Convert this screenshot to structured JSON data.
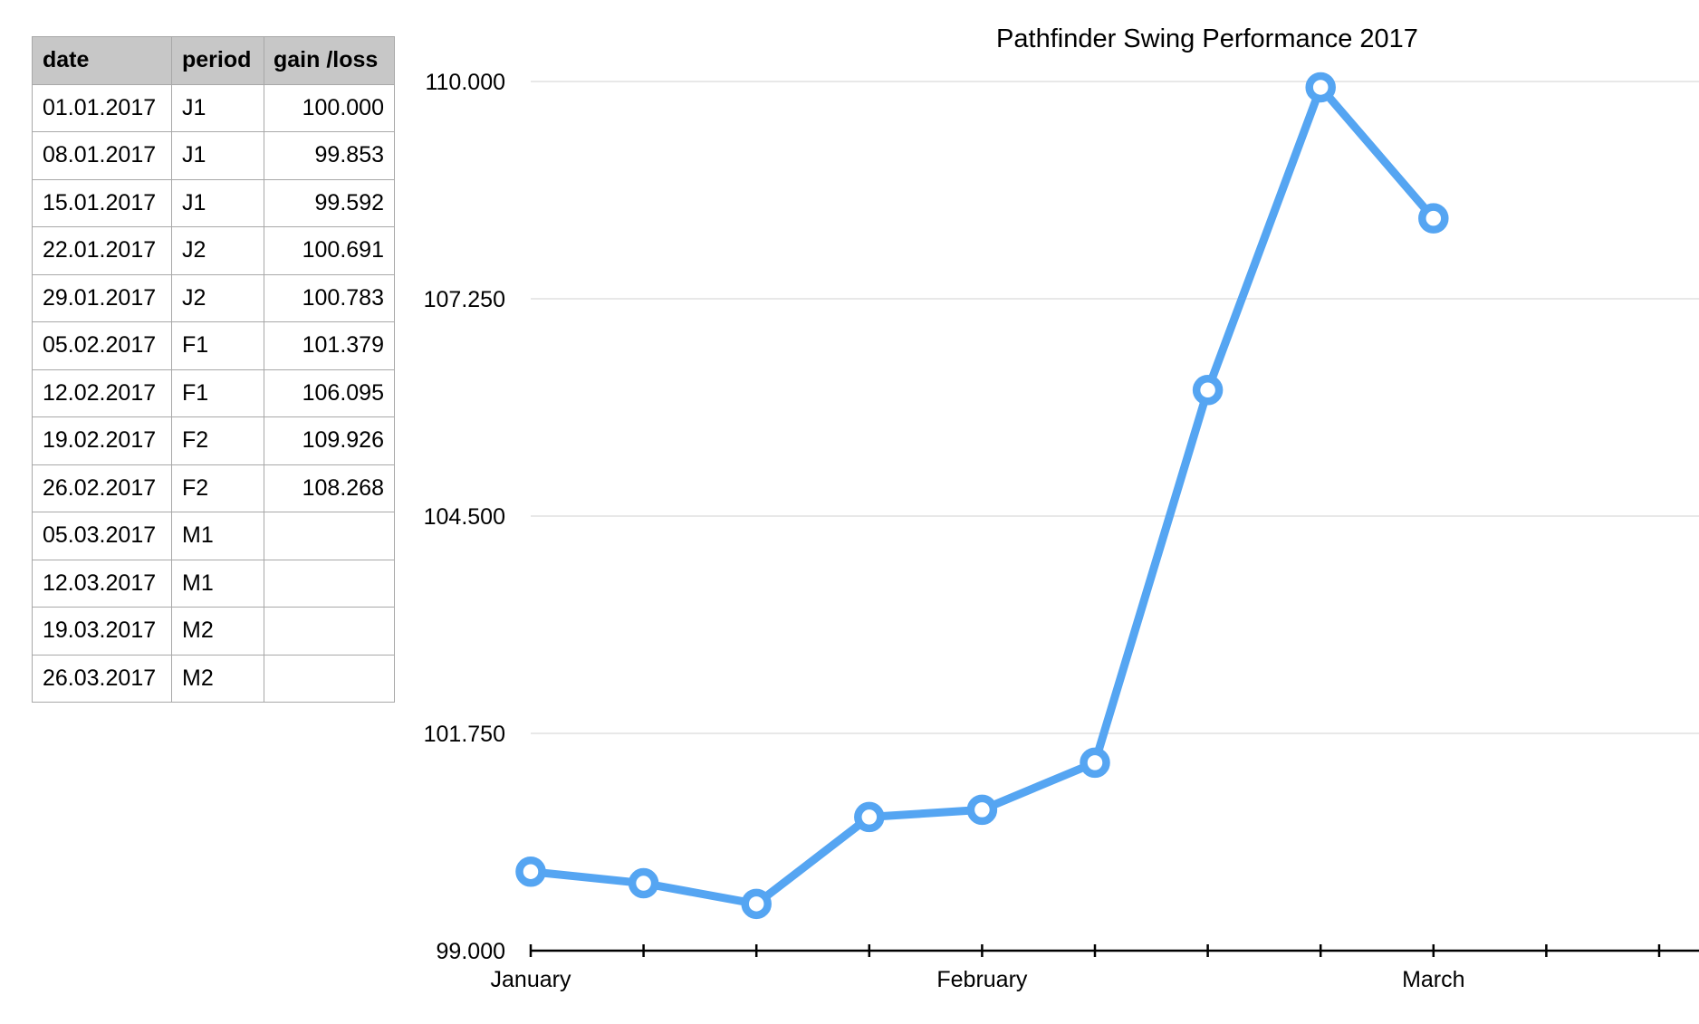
{
  "table": {
    "headers": [
      "date",
      "period",
      "gain /loss"
    ],
    "rows": [
      [
        "01.01.2017",
        "J1",
        "100.000"
      ],
      [
        "08.01.2017",
        "J1",
        "99.853"
      ],
      [
        "15.01.2017",
        "J1",
        "99.592"
      ],
      [
        "22.01.2017",
        "J2",
        "100.691"
      ],
      [
        "29.01.2017",
        "J2",
        "100.783"
      ],
      [
        "05.02.2017",
        "F1",
        "101.379"
      ],
      [
        "12.02.2017",
        "F1",
        "106.095"
      ],
      [
        "19.02.2017",
        "F2",
        "109.926"
      ],
      [
        "26.02.2017",
        "F2",
        "108.268"
      ],
      [
        "05.03.2017",
        "M1",
        ""
      ],
      [
        "12.03.2017",
        "M1",
        ""
      ],
      [
        "19.03.2017",
        "M2",
        ""
      ],
      [
        "26.03.2017",
        "M2",
        ""
      ]
    ]
  },
  "chart_data": {
    "type": "line",
    "title": "Pathfinder Swing Performance 2017",
    "xlabel": "",
    "ylabel": "",
    "x": [
      "01.01.2017",
      "08.01.2017",
      "15.01.2017",
      "22.01.2017",
      "29.01.2017",
      "05.02.2017",
      "12.02.2017",
      "19.02.2017",
      "26.02.2017",
      "05.03.2017",
      "12.03.2017",
      "19.03.2017",
      "26.03.2017"
    ],
    "x_tick_labels": [
      "January",
      "",
      "",
      "",
      "February",
      "",
      "",
      "",
      "March",
      "",
      "",
      "",
      ""
    ],
    "series": [
      {
        "values": [
          100.0,
          99.853,
          99.592,
          100.691,
          100.783,
          101.379,
          106.095,
          109.926,
          108.268,
          null,
          null,
          null,
          null
        ],
        "color": "#55a5f2"
      }
    ],
    "ylim": [
      99.0,
      110.0
    ],
    "y_ticks": [
      "99.000",
      "101.750",
      "104.500",
      "107.250",
      "110.000"
    ],
    "y_tick_values": [
      99.0,
      101.75,
      104.5,
      107.25,
      110.0
    ],
    "grid": true,
    "legend": "none"
  }
}
